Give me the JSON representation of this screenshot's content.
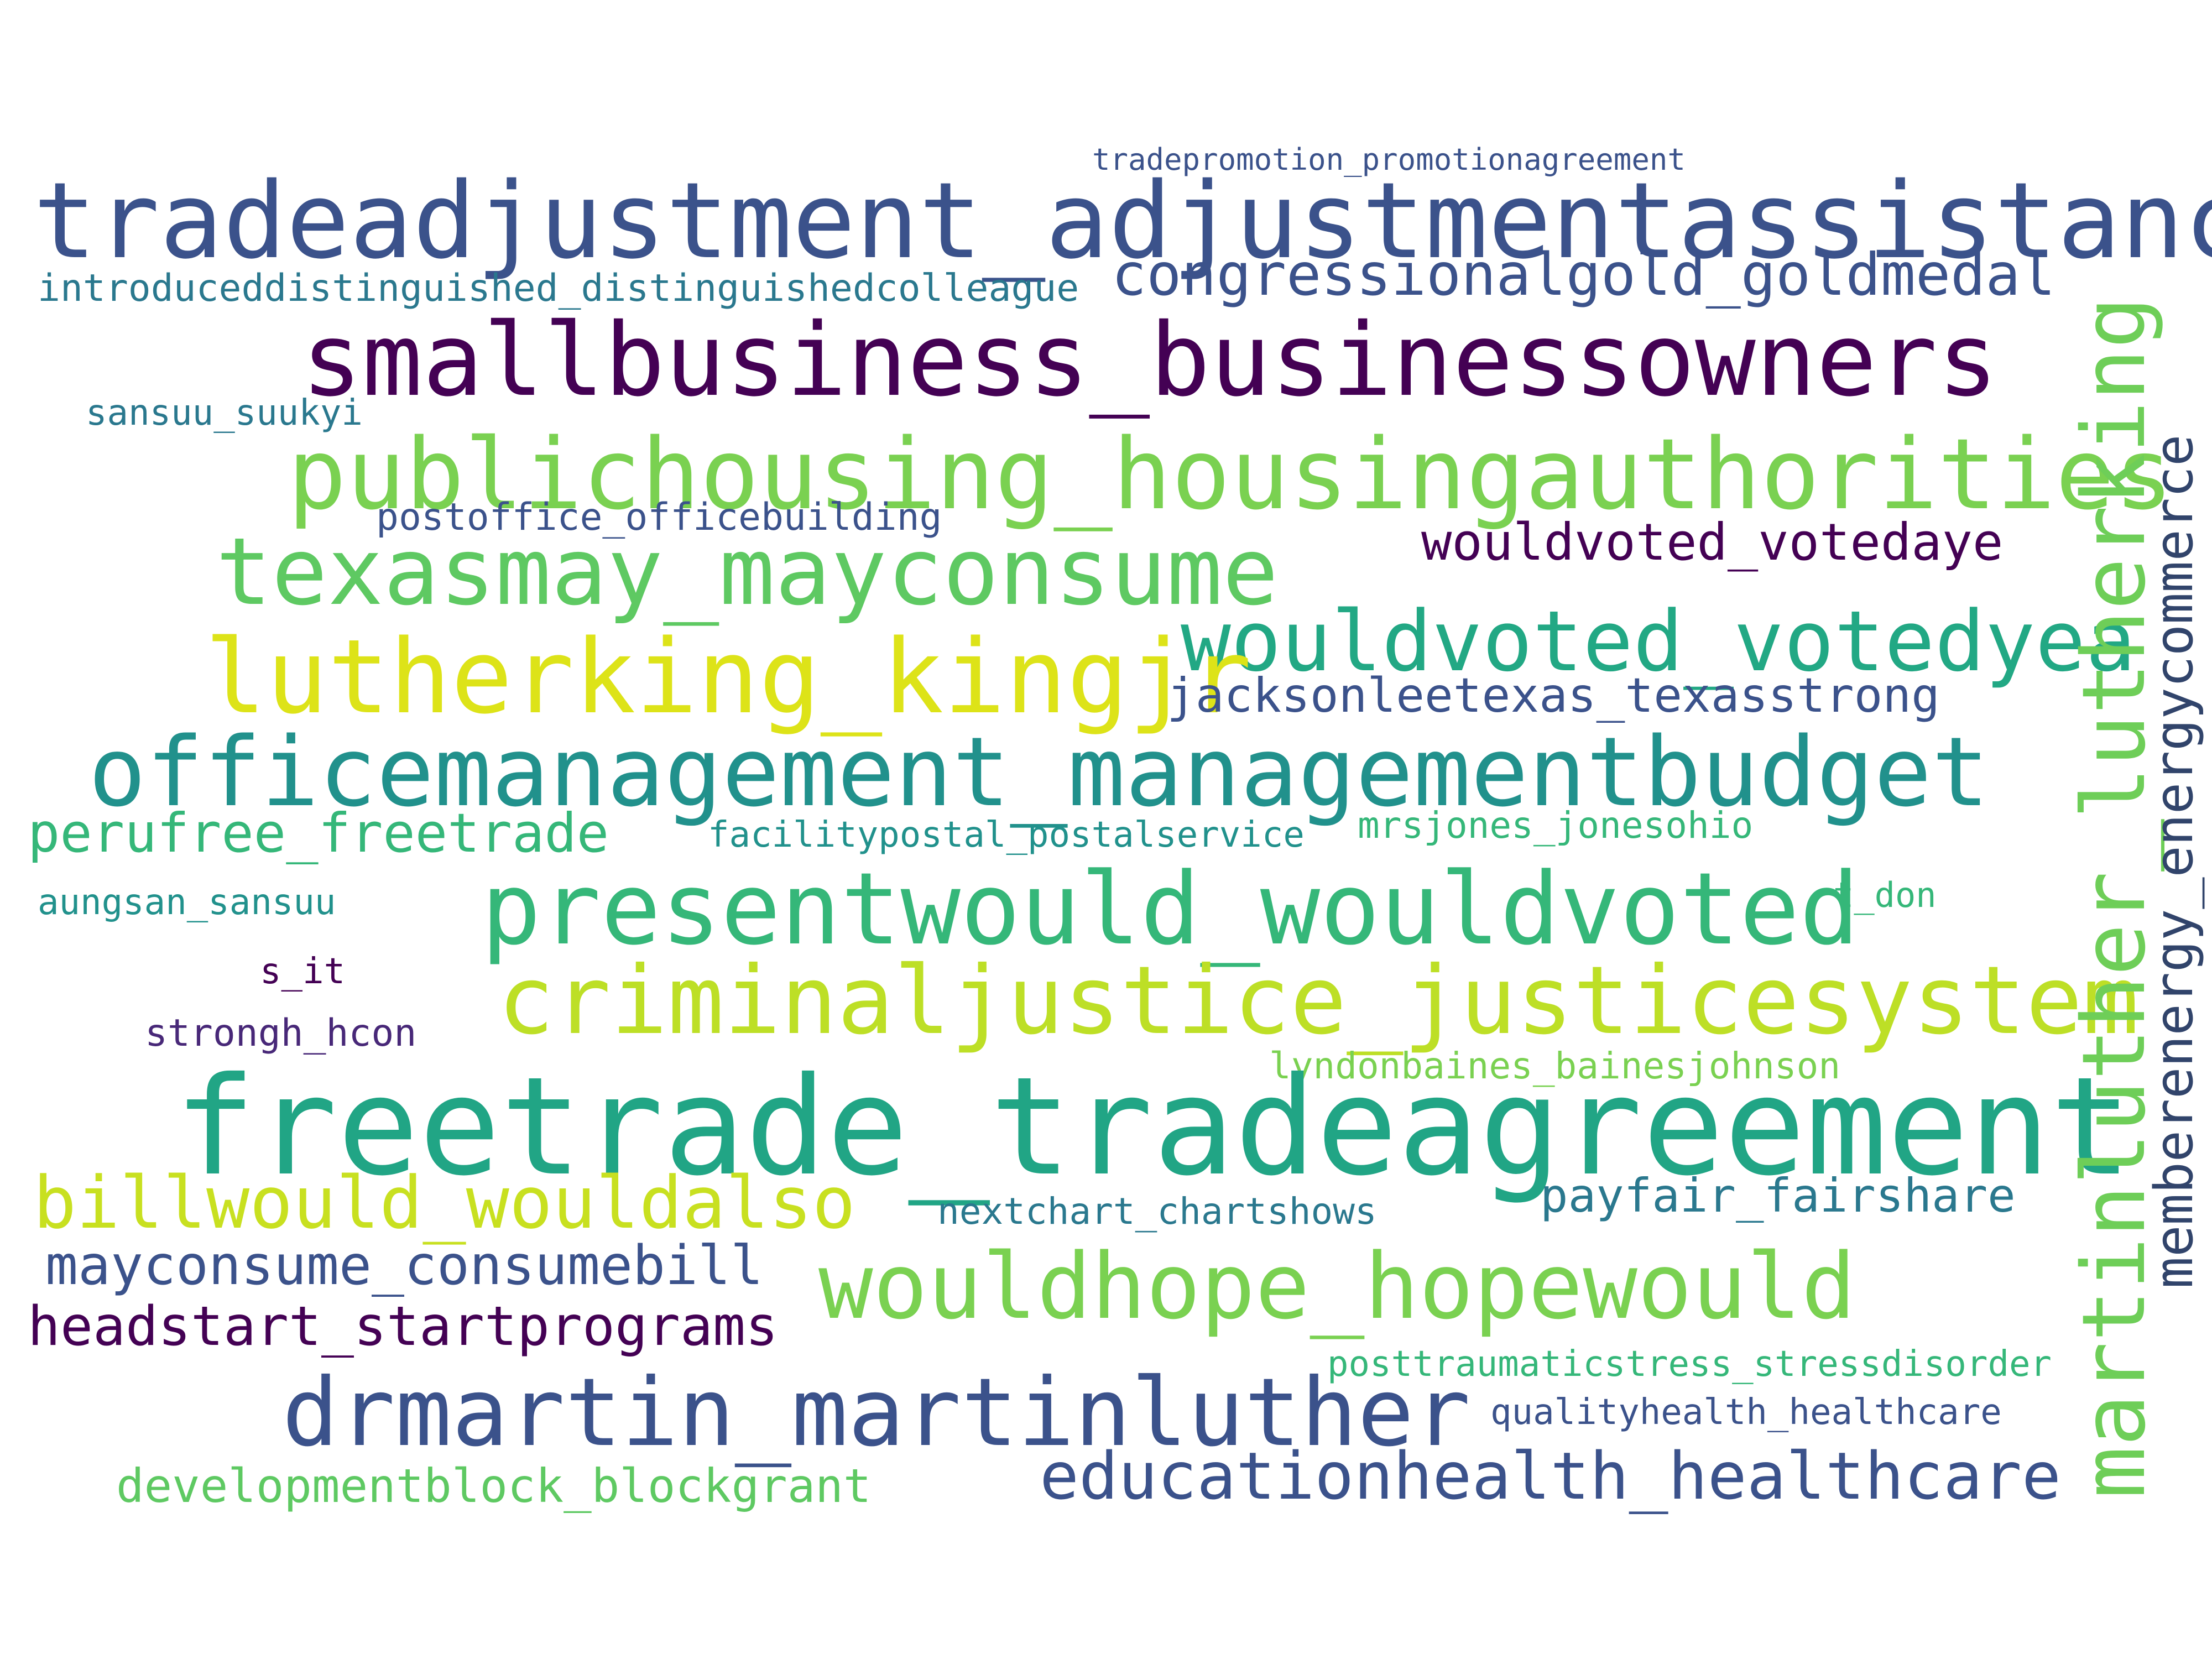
{
  "words": [
    {
      "text": "tradepromotion_promotionagreement",
      "color": "#3b528b"
    },
    {
      "text": "tradeadjustment_adjustmentassistance",
      "color": "#3b528b"
    },
    {
      "text": "introduceddistinguished_distinguishedcolleague",
      "color": "#2a788e"
    },
    {
      "text": "congressionalgold_goldmedal",
      "color": "#3b528b"
    },
    {
      "text": "smallbusiness_businessowners",
      "color": "#440154"
    },
    {
      "text": "sansuu_suukyi",
      "color": "#2a788e"
    },
    {
      "text": "publichousing_housingauthorities",
      "color": "#7ad151"
    },
    {
      "text": "postoffice_officebuilding",
      "color": "#3b528b"
    },
    {
      "text": "wouldvoted_votedaye",
      "color": "#440154"
    },
    {
      "text": "texasmay_mayconsume",
      "color": "#5ec962"
    },
    {
      "text": "wouldvoted_votedyea",
      "color": "#22a884"
    },
    {
      "text": "lutherking_kingjr",
      "color": "#dde318"
    },
    {
      "text": "jacksonleetexas_texasstrong",
      "color": "#3b528b"
    },
    {
      "text": "officemanagement_managementbudget",
      "color": "#21918c"
    },
    {
      "text": "perufree_freetrade",
      "color": "#35b779"
    },
    {
      "text": "facilitypostal_postalservice",
      "color": "#21918c"
    },
    {
      "text": "mrsjones_jonesohio",
      "color": "#35b779"
    },
    {
      "text": "aungsan_sansuu",
      "color": "#21918c"
    },
    {
      "text": "presentwould_wouldvoted",
      "color": "#35b779"
    },
    {
      "text": "t_don",
      "color": "#35b779"
    },
    {
      "text": "s_it",
      "color": "#440154"
    },
    {
      "text": "criminaljustice_justicesystem",
      "color": "#bddf26"
    },
    {
      "text": "strongh_hcon",
      "color": "#482878"
    },
    {
      "text": "lyndonbaines_bainesjohnson",
      "color": "#7ad151"
    },
    {
      "text": "freetrade_tradeagreement",
      "color": "#21a585"
    },
    {
      "text": "billwould_wouldalso",
      "color": "#c8e020"
    },
    {
      "text": "nextchart_chartshows",
      "color": "#2a788e"
    },
    {
      "text": "payfair_fairshare",
      "color": "#2a788e"
    },
    {
      "text": "mayconsume_consumebill",
      "color": "#3b528b"
    },
    {
      "text": "wouldhope_hopewould",
      "color": "#7ad151"
    },
    {
      "text": "headstart_startprograms",
      "color": "#440154"
    },
    {
      "text": "posttraumaticstress_stressdisorder",
      "color": "#35b779"
    },
    {
      "text": "drmartin_martinluther",
      "color": "#3b528b"
    },
    {
      "text": "qualityhealth_healthcare",
      "color": "#3b528b"
    },
    {
      "text": "educationhealth_healthcare",
      "color": "#3b528b"
    },
    {
      "text": "developmentblock_blockgrant",
      "color": "#5ec962"
    },
    {
      "text": "martinluther_lutherking",
      "color": "#6ece58"
    },
    {
      "text": "memberenergy_energycommerce",
      "color": "#31446b"
    }
  ]
}
